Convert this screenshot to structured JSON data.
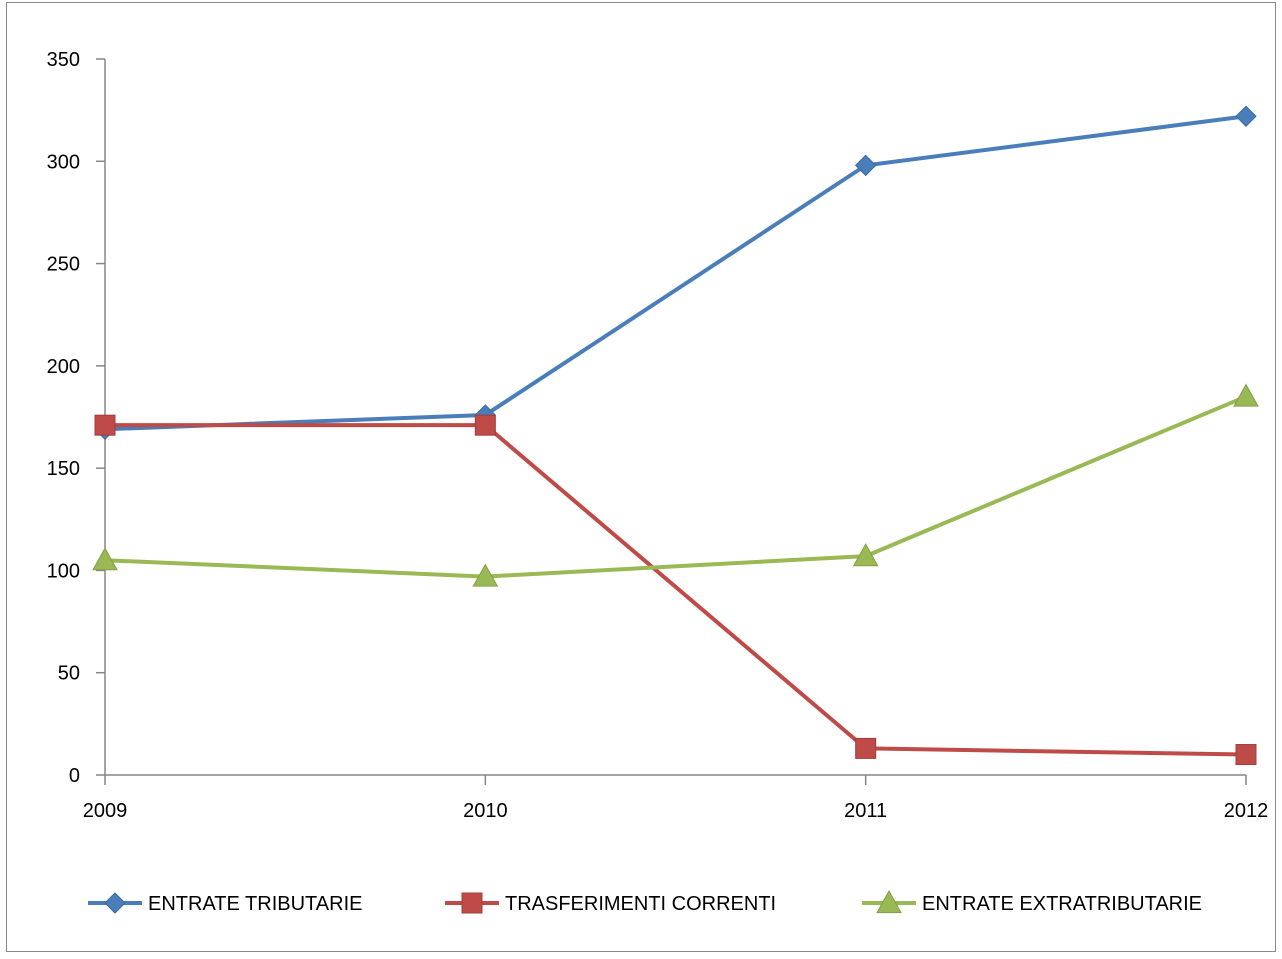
{
  "chart_data": {
    "type": "line",
    "title": "",
    "xlabel": "",
    "ylabel": "",
    "categories": [
      "2009",
      "2010",
      "2011",
      "2012"
    ],
    "ylim": [
      0,
      350
    ],
    "yticks": [
      "0",
      "50",
      "100",
      "150",
      "200",
      "250",
      "300",
      "350"
    ],
    "grid": false,
    "legend_position": "bottom",
    "series": [
      {
        "name": "ENTRATE TRIBUTARIE",
        "values": [
          169,
          176,
          298,
          322
        ],
        "color": "#4a7ebb",
        "marker": "diamond"
      },
      {
        "name": "TRASFERIMENTI CORRENTI",
        "values": [
          171,
          171,
          13,
          10
        ],
        "color": "#be4b48",
        "marker": "square"
      },
      {
        "name": "ENTRATE EXTRATRIBUTARIE",
        "values": [
          105,
          97,
          107,
          185
        ],
        "color": "#98b954",
        "marker": "triangle"
      }
    ]
  }
}
